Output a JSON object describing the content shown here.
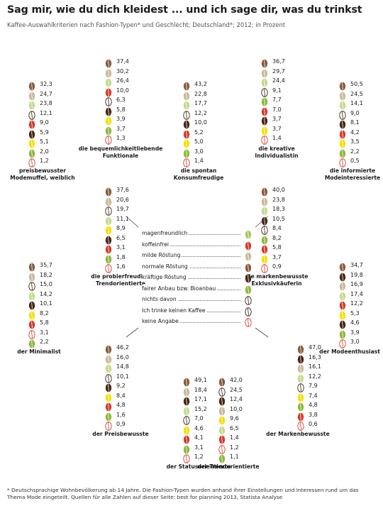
{
  "title": "Sag mir, wie du dich kleidest ... und ich sage dir, was du trinkst",
  "subtitle": "Kaffee-Auswahlkriterien nach Fashion-Typen* und Geschlecht; Deutschland*; 2012; in Prozent",
  "footnote": "* Deutschsprachige Wohnbevölkerung ab 14 Jahre. Die Fashion-Typen wurden anhand ihrer Einstellungen und Interessen rund um das Thema Mode eingeteilt. Quellen für alle Zahlen auf dieser Seite: best for planning 2013, Statista Analyse",
  "criteria": [
    {
      "label": "magenfreundlich",
      "color": "#a8c95a",
      "icon": "bean-light-green"
    },
    {
      "label": "koffeinfrei",
      "color": "#e88a8a",
      "icon": "bean-light-red"
    },
    {
      "label": "milde Röstung",
      "color": "#c9b89d",
      "icon": "bean-beige"
    },
    {
      "label": "normale Röstung",
      "color": "#8a5a3a",
      "icon": "bean-brown"
    },
    {
      "label": "kräftige Röstung",
      "color": "#4a2415",
      "icon": "bean-dark-brown"
    },
    {
      "label": "fairer Anbau bzw. Bioanbau",
      "color": "#8db83a",
      "icon": "bean-green"
    },
    {
      "label": "nichts davon",
      "color": "#ffffff",
      "icon": "bean-outline-dark"
    },
    {
      "label": "Ich trinke keinen Kaffee",
      "color": "#ffffff",
      "icon": "bean-outline-dark"
    },
    {
      "label": "keine Angabe",
      "color": "#ffffff",
      "icon": "bean-outline-red"
    }
  ],
  "chart_data": [
    {
      "type": "table",
      "name": "preisbewusster Modemuffel, weiblich",
      "values": [
        32.3,
        24.7,
        23.8,
        12.1,
        9.0,
        5.9,
        5.1,
        2.0,
        1.2
      ],
      "labels": [
        "32,3",
        "24,7",
        "23,8",
        "12,1",
        "9,0",
        "5,9",
        "5,1",
        "2,0",
        "1,2"
      ],
      "beans": [
        "#8a5a3a",
        "#c9b89d",
        "#c5d98a",
        "outline",
        "#d43a2a",
        "#4a2415",
        "#f4e000",
        "#8db83a",
        "outline-red"
      ]
    },
    {
      "type": "table",
      "name": "die bequemlichkeitliebende Funktionale",
      "values": [
        37.4,
        30.2,
        26.4,
        10.0,
        6.3,
        5.8,
        3.9,
        3.7,
        1.3
      ],
      "labels": [
        "37,4",
        "30,2",
        "26,4",
        "10,0",
        "6,3",
        "5,8",
        "3,9",
        "3,7",
        "1,3"
      ],
      "beans": [
        "#8a5a3a",
        "#c9b89d",
        "#c5d98a",
        "#d43a2a",
        "outline",
        "#4a2415",
        "#f4e000",
        "#8db83a",
        "outline-red"
      ]
    },
    {
      "type": "table",
      "name": "die spontan Konsumfreudige",
      "values": [
        43.2,
        22.8,
        17.7,
        12.2,
        10.0,
        5.2,
        5.0,
        3.0,
        1.4
      ],
      "labels": [
        "43,2",
        "22,8",
        "17,7",
        "12,2",
        "10,0",
        "5,2",
        "5,0",
        "3,0",
        "1,4"
      ],
      "beans": [
        "#8a5a3a",
        "#c9b89d",
        "#c5d98a",
        "outline",
        "#4a2415",
        "#d43a2a",
        "#f4e000",
        "#8db83a",
        "outline-red"
      ]
    },
    {
      "type": "table",
      "name": "die kreative Individualistin",
      "values": [
        36.7,
        29.7,
        24.4,
        9.1,
        7.7,
        7.0,
        3.7,
        3.7,
        1.4
      ],
      "labels": [
        "36,7",
        "29,7",
        "24,4",
        "9,1",
        "7,7",
        "7,0",
        "3,7",
        "3,7",
        "1,4"
      ],
      "beans": [
        "#8a5a3a",
        "#c9b89d",
        "#c5d98a",
        "outline",
        "#8db83a",
        "#d43a2a",
        "#4a2415",
        "#f4e000",
        "outline-red"
      ]
    },
    {
      "type": "table",
      "name": "die informierte Modeinteressierte",
      "values": [
        50.5,
        24.5,
        14.1,
        9.0,
        8.1,
        4.2,
        3.5,
        2.2,
        0.5
      ],
      "labels": [
        "50,5",
        "24,5",
        "14,1",
        "9,0",
        "8,1",
        "4,2",
        "3,5",
        "2,2",
        "0,5"
      ],
      "beans": [
        "#8a5a3a",
        "#c9b89d",
        "#c5d98a",
        "outline",
        "#4a2415",
        "#d43a2a",
        "#f4e000",
        "#8db83a",
        "outline-red"
      ]
    },
    {
      "type": "table",
      "name": "die probierfreudige Trendorientierte",
      "values": [
        37.6,
        20.6,
        19.7,
        11.1,
        8.9,
        6.5,
        3.1,
        1.8,
        1.6
      ],
      "labels": [
        "37,6",
        "20,6",
        "19,7",
        "11,1",
        "8,9",
        "6,5",
        "3,1",
        "1,8",
        "1,6"
      ],
      "beans": [
        "#8a5a3a",
        "#c9b89d",
        "outline",
        "#c5d98a",
        "#f4e000",
        "#4a2415",
        "#d43a2a",
        "#8db83a",
        "outline-red"
      ]
    },
    {
      "type": "table",
      "name": "die markenbewusste Exklusivkäuferin",
      "values": [
        40.0,
        23.8,
        18.3,
        10.5,
        8.4,
        8.2,
        5.8,
        3.7,
        0.9
      ],
      "labels": [
        "40,0",
        "23,8",
        "18,3",
        "10,5",
        "8,4",
        "8,2",
        "5,8",
        "3,7",
        "0,9"
      ],
      "beans": [
        "#8a5a3a",
        "#c9b89d",
        "#c5d98a",
        "#4a2415",
        "outline",
        "#8db83a",
        "#d43a2a",
        "#f4e000",
        "outline-red"
      ]
    },
    {
      "type": "table",
      "name": "der Minimalist",
      "values": [
        35.7,
        18.2,
        15.0,
        14.2,
        10.1,
        8.2,
        5.8,
        3.1,
        2.2
      ],
      "labels": [
        "35,7",
        "18,2",
        "15,0",
        "14,2",
        "10,1",
        "8,2",
        "5,8",
        "3,1",
        "2,2"
      ],
      "beans": [
        "#8a5a3a",
        "#c9b89d",
        "outline",
        "#c5d98a",
        "#4a2415",
        "#f4e000",
        "#d43a2a",
        "outline-red",
        "#8db83a"
      ]
    },
    {
      "type": "table",
      "name": "der Modeenthusiast",
      "values": [
        34.7,
        19.8,
        16.9,
        17.4,
        12.2,
        5.3,
        4.6,
        3.9,
        3.0
      ],
      "labels": [
        "34,7",
        "19,8",
        "16,9",
        "17,4",
        "12,2",
        "5,3",
        "4,6",
        "3,9",
        "3,0"
      ],
      "beans": [
        "#8a5a3a",
        "#4a2415",
        "#c9b89d",
        "#c5d98a",
        "#d43a2a",
        "#f4e000",
        "#4a2415",
        "#8db83a",
        "outline-red"
      ]
    },
    {
      "type": "table",
      "name": "der Preisbewusste",
      "values": [
        46.2,
        16.0,
        14.8,
        10.1,
        9.2,
        8.4,
        4.8,
        1.6,
        0.9
      ],
      "labels": [
        "46,2",
        "16,0",
        "14,8",
        "10,1",
        "9,2",
        "8,4",
        "4,8",
        "1,6",
        "0,9"
      ],
      "beans": [
        "#8a5a3a",
        "#c9b89d",
        "#c5d98a",
        "outline",
        "#4a2415",
        "#f4e000",
        "#d43a2a",
        "#8db83a",
        "outline-red"
      ]
    },
    {
      "type": "table",
      "name": "der Markenbewusste",
      "values": [
        47.0,
        16.3,
        16.1,
        12.2,
        7.9,
        7.4,
        4.8,
        3.8,
        0.6
      ],
      "labels": [
        "47,0",
        "16,3",
        "16,1",
        "12,2",
        "7,9",
        "7,4",
        "4,8",
        "3,8",
        "0,6"
      ],
      "beans": [
        "#8a5a3a",
        "#4a2415",
        "#c9b89d",
        "#c5d98a",
        "outline",
        "#f4e000",
        "#8db83a",
        "#d43a2a",
        "outline-red"
      ]
    },
    {
      "type": "table",
      "name": "der Statusorientierte",
      "values": [
        49.1,
        18.4,
        17.1,
        15.2,
        7.0,
        4.6,
        4.1,
        3.1,
        1.2
      ],
      "labels": [
        "49,1",
        "18,4",
        "17,1",
        "15,2",
        "7,0",
        "4,6",
        "4,1",
        "3,1",
        "1,2"
      ],
      "beans": [
        "#8a5a3a",
        "#c9b89d",
        "#4a2415",
        "#c5d98a",
        "outline",
        "#f4e000",
        "#d43a2a",
        "#8db83a",
        "outline-red"
      ]
    },
    {
      "type": "table",
      "name": "der Trendorientierte",
      "values": [
        42.0,
        24.5,
        12.4,
        10.0,
        9.6,
        6.5,
        1.4,
        1.2,
        1.1
      ],
      "labels": [
        "42,0",
        "24,5",
        "12,4",
        "10,0",
        "9,6",
        "6,5",
        "1,4",
        "1,2",
        "1,1"
      ],
      "beans": [
        "#8a5a3a",
        "outline",
        "#4a2415",
        "#c9b89d",
        "#f4e000",
        "#c5d98a",
        "#d43a2a",
        "outline-red",
        "#8db83a"
      ]
    }
  ]
}
